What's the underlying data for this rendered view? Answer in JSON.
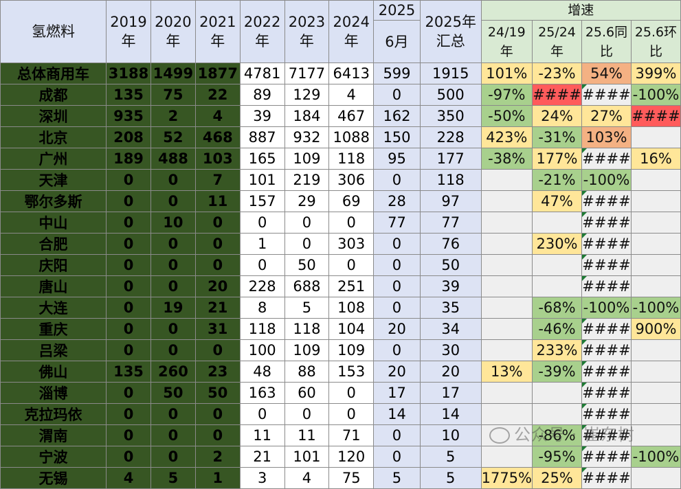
{
  "header": {
    "corner": "氢燃料",
    "year_cols": [
      {
        "a": "2019",
        "b": "年"
      },
      {
        "a": "2020",
        "b": "年"
      },
      {
        "a": "2021",
        "b": "年"
      },
      {
        "a": "2022",
        "b": "年"
      },
      {
        "a": "2023",
        "b": "年"
      },
      {
        "a": "2024",
        "b": "年"
      }
    ],
    "month_top": "2025",
    "month_bottom": "6月",
    "total_a": "2025年",
    "total_b": "汇总",
    "growth_title": "增速",
    "growth_cols": [
      {
        "a": "24/19",
        "b": "年"
      },
      {
        "a": "25/24",
        "b": "年"
      },
      {
        "a": "25.6同",
        "b": "比"
      },
      {
        "a": "25.6环",
        "b": "比"
      }
    ]
  },
  "rows": [
    {
      "name": "总体商用车",
      "v": [
        "3188",
        "1499",
        "1877",
        "4781",
        "7177",
        "6413",
        "599",
        "1915"
      ],
      "g": [
        "101%",
        "-23%",
        "54%",
        "399%"
      ]
    },
    {
      "name": "成都",
      "v": [
        "135",
        "75",
        "22",
        "89",
        "129",
        "4",
        "0",
        "500"
      ],
      "g": [
        "-97%",
        "####",
        "####",
        "-100%"
      ]
    },
    {
      "name": "深圳",
      "v": [
        "935",
        "2",
        "4",
        "39",
        "184",
        "467",
        "162",
        "350"
      ],
      "g": [
        "-50%",
        "24%",
        "27%",
        "####"
      ]
    },
    {
      "name": "北京",
      "v": [
        "208",
        "52",
        "468",
        "887",
        "932",
        "1088",
        "150",
        "228"
      ],
      "g": [
        "423%",
        "-31%",
        "103%",
        ""
      ]
    },
    {
      "name": "广州",
      "v": [
        "189",
        "488",
        "103",
        "165",
        "109",
        "118",
        "95",
        "177"
      ],
      "g": [
        "-38%",
        "177%",
        "####",
        "16%"
      ]
    },
    {
      "name": "天津",
      "v": [
        "0",
        "0",
        "7",
        "101",
        "219",
        "306",
        "0",
        "118"
      ],
      "g": [
        "",
        "-21%",
        "-100%",
        ""
      ]
    },
    {
      "name": "鄂尔多斯",
      "v": [
        "0",
        "0",
        "11",
        "157",
        "29",
        "69",
        "28",
        "97"
      ],
      "g": [
        "",
        "47%",
        "####",
        ""
      ]
    },
    {
      "name": "中山",
      "v": [
        "0",
        "10",
        "0",
        "0",
        "0",
        "0",
        "77",
        "77"
      ],
      "g": [
        "",
        "",
        "####",
        ""
      ]
    },
    {
      "name": "合肥",
      "v": [
        "0",
        "0",
        "0",
        "1",
        "0",
        "303",
        "0",
        "76"
      ],
      "g": [
        "",
        "230%",
        "####",
        ""
      ]
    },
    {
      "name": "庆阳",
      "v": [
        "0",
        "0",
        "0",
        "0",
        "50",
        "0",
        "0",
        "50"
      ],
      "g": [
        "",
        "",
        "####",
        ""
      ]
    },
    {
      "name": "唐山",
      "v": [
        "0",
        "0",
        "20",
        "228",
        "688",
        "251",
        "0",
        "39"
      ],
      "g": [
        "",
        "",
        "####",
        ""
      ]
    },
    {
      "name": "大连",
      "v": [
        "0",
        "19",
        "21",
        "8",
        "5",
        "108",
        "0",
        "35"
      ],
      "g": [
        "",
        "-68%",
        "-100%",
        "-100%"
      ]
    },
    {
      "name": "重庆",
      "v": [
        "0",
        "0",
        "31",
        "118",
        "118",
        "104",
        "20",
        "34"
      ],
      "g": [
        "",
        "-46%",
        "####",
        "900%"
      ]
    },
    {
      "name": "吕梁",
      "v": [
        "0",
        "0",
        "0",
        "100",
        "109",
        "109",
        "0",
        "30"
      ],
      "g": [
        "",
        "233%",
        "####",
        ""
      ]
    },
    {
      "name": "佛山",
      "v": [
        "135",
        "260",
        "23",
        "48",
        "88",
        "153",
        "20",
        "20"
      ],
      "g": [
        "13%",
        "-39%",
        "####",
        ""
      ]
    },
    {
      "name": "淄博",
      "v": [
        "0",
        "50",
        "50",
        "163",
        "60",
        "0",
        "17",
        "17"
      ],
      "g": [
        "",
        "",
        "####",
        ""
      ]
    },
    {
      "name": "克拉玛依",
      "v": [
        "0",
        "0",
        "0",
        "0",
        "0",
        "0",
        "14",
        "14"
      ],
      "g": [
        "",
        "",
        "####",
        ""
      ]
    },
    {
      "name": "渭南",
      "v": [
        "0",
        "0",
        "0",
        "11",
        "11",
        "71",
        "0",
        "10"
      ],
      "g": [
        "",
        "-86%",
        "####",
        ""
      ]
    },
    {
      "name": "宁波",
      "v": [
        "0",
        "0",
        "2",
        "21",
        "101",
        "120",
        "0",
        "5"
      ],
      "g": [
        "",
        "-95%",
        "####",
        "-100%"
      ]
    },
    {
      "name": "无锡",
      "v": [
        "4",
        "5",
        "1",
        "3",
        "4",
        "75",
        "5",
        "5"
      ],
      "g": [
        "1775%",
        "25%",
        "####",
        ""
      ]
    }
  ],
  "growth_colors": {
    "green": "#a8d08d",
    "yellow": "#ffe699",
    "orange": "#f4b183",
    "red": "#ff5b5b",
    "gray": "#efefef"
  },
  "growth_color_map": [
    [
      "yellow",
      "yellow",
      "orange",
      "yellow"
    ],
    [
      "green",
      "red",
      "gray-mark",
      "green"
    ],
    [
      "green",
      "yellow",
      "yellow",
      "red"
    ],
    [
      "yellow",
      "green",
      "orange",
      "gray"
    ],
    [
      "green",
      "yellow",
      "gray-mark",
      "yellow"
    ],
    [
      "gray",
      "green",
      "green",
      "gray"
    ],
    [
      "gray",
      "yellow",
      "gray-mark",
      "gray"
    ],
    [
      "gray",
      "gray",
      "gray-mark",
      "gray"
    ],
    [
      "gray",
      "yellow",
      "gray-mark",
      "gray"
    ],
    [
      "gray",
      "gray",
      "gray-mark",
      "gray"
    ],
    [
      "gray",
      "gray",
      "gray-mark",
      "gray"
    ],
    [
      "gray",
      "green",
      "green",
      "green"
    ],
    [
      "gray",
      "green",
      "gray-mark",
      "yellow"
    ],
    [
      "gray",
      "yellow",
      "gray-mark",
      "gray"
    ],
    [
      "yellow",
      "green",
      "gray-mark",
      "gray"
    ],
    [
      "gray",
      "gray",
      "gray-mark",
      "gray"
    ],
    [
      "gray",
      "gray",
      "gray-mark",
      "gray"
    ],
    [
      "gray",
      "green",
      "gray-mark",
      "gray"
    ],
    [
      "gray",
      "green",
      "gray-mark",
      "green"
    ],
    [
      "yellow",
      "yellow",
      "gray-mark",
      "gray"
    ]
  ],
  "watermark": "公众号 · 崔东树"
}
